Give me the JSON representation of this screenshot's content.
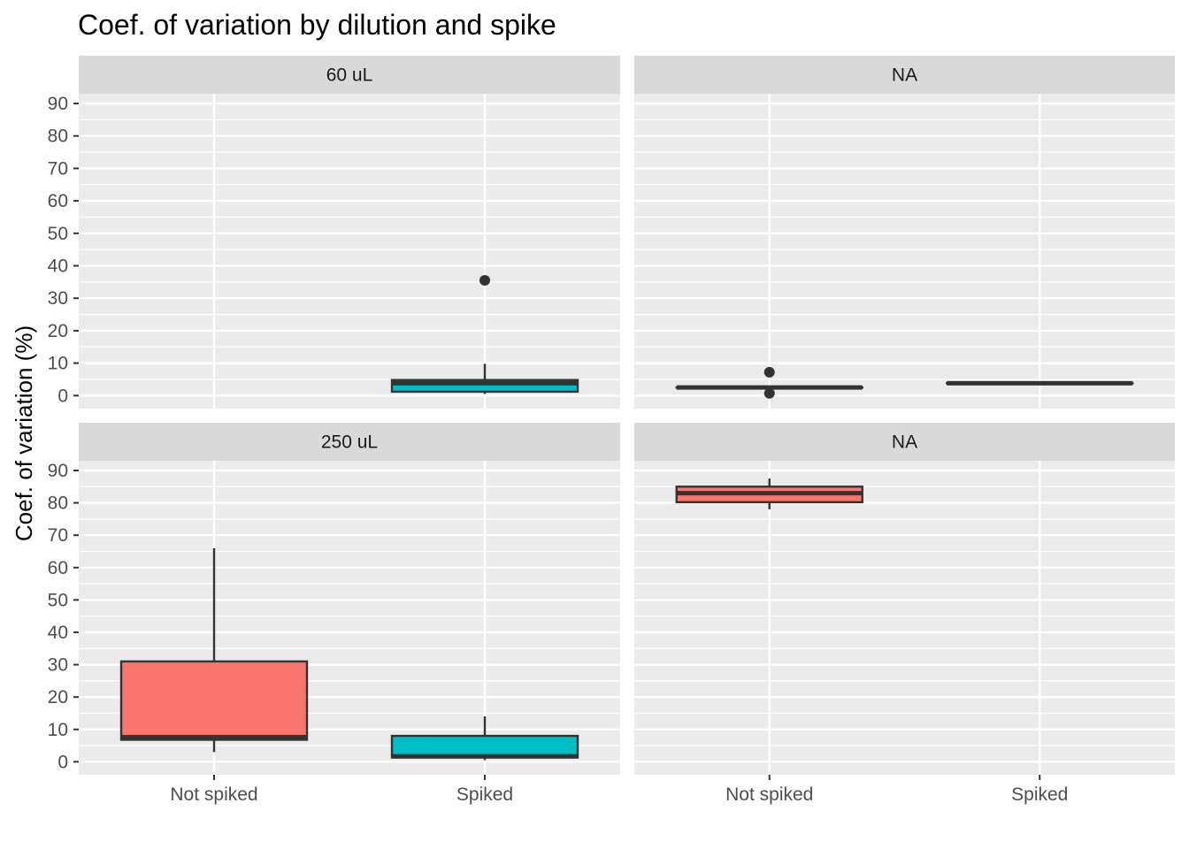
{
  "chart_data": {
    "type": "box",
    "title": "Coef. of variation by dilution and spike",
    "xlabel": "",
    "ylabel": "Coef. of variation (%)",
    "ylim": [
      -4,
      93
    ],
    "yticks": [
      0,
      10,
      20,
      30,
      40,
      50,
      60,
      70,
      80,
      90
    ],
    "categories": [
      "Not spiked",
      "Spiked"
    ],
    "fill_colors": {
      "Not spiked": "#F8766D",
      "Spiked": "#00BFC4"
    },
    "grid": true,
    "panels": [
      {
        "strip": "60 uL",
        "boxes": [
          {
            "category": "Spiked",
            "whisker_low": 0.5,
            "q1": 1.2,
            "median": 3.8,
            "q3": 4.8,
            "whisker_high": 9.8,
            "outliers": [
              35.5
            ]
          }
        ]
      },
      {
        "strip": "NA",
        "boxes": [
          {
            "category": "Not spiked",
            "whisker_low": 2.5,
            "q1": 2.5,
            "median": 2.5,
            "q3": 2.5,
            "whisker_high": 2.5,
            "outliers": [
              7.2,
              0.7
            ]
          },
          {
            "category": "Spiked",
            "whisker_low": 3.8,
            "q1": 3.8,
            "median": 3.8,
            "q3": 3.8,
            "whisker_high": 3.8,
            "outliers": []
          }
        ]
      },
      {
        "strip": "250 uL",
        "boxes": [
          {
            "category": "Not spiked",
            "whisker_low": 3,
            "q1": 6.8,
            "median": 7.6,
            "q3": 31,
            "whisker_high": 66,
            "outliers": []
          },
          {
            "category": "Spiked",
            "whisker_low": 0.5,
            "q1": 1.3,
            "median": 1.7,
            "q3": 8,
            "whisker_high": 14,
            "outliers": []
          }
        ]
      },
      {
        "strip": "NA",
        "boxes": [
          {
            "category": "Not spiked",
            "whisker_low": 78,
            "q1": 80.2,
            "median": 83,
            "q3": 85,
            "whisker_high": 87.5,
            "outliers": []
          }
        ]
      }
    ]
  }
}
